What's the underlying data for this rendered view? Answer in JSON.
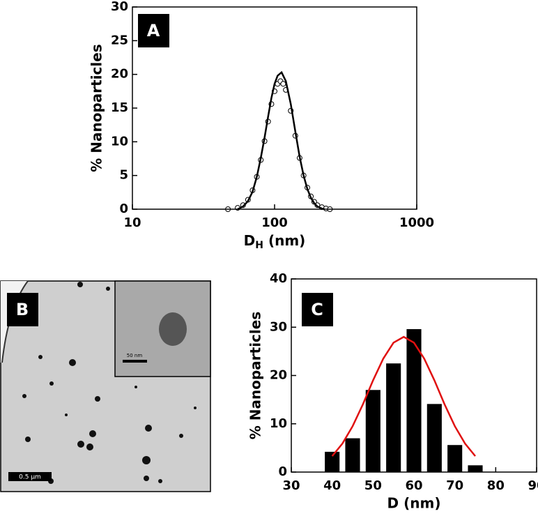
{
  "chart_data": [
    {
      "type": "line",
      "label": "A",
      "ylabel": "% Nanoparticles",
      "xlabel": [
        "D",
        "H",
        " (nm)"
      ],
      "xlog": true,
      "xlim": [
        10,
        1000
      ],
      "xticks": [
        10,
        100,
        1000
      ],
      "ylim": [
        0,
        30
      ],
      "yticks": [
        0,
        5,
        10,
        15,
        20,
        25,
        30
      ],
      "series": [
        {
          "color": "#000000",
          "marker": "circle",
          "x": [
            47,
            55,
            60,
            65,
            70,
            75,
            80,
            85,
            90,
            95,
            100,
            105,
            110,
            115,
            120,
            130,
            140,
            150,
            160,
            170,
            180,
            190,
            200,
            215,
            230,
            245
          ],
          "values": [
            0,
            0.2,
            0.6,
            1.4,
            2.8,
            4.8,
            7.3,
            10.1,
            13.0,
            15.6,
            17.5,
            18.6,
            19.0,
            18.6,
            17.7,
            14.6,
            10.9,
            7.6,
            5.0,
            3.2,
            1.9,
            1.1,
            0.6,
            0.3,
            0.1,
            0
          ]
        },
        {
          "color": "#000000",
          "marker": "none",
          "x": [
            55,
            60,
            65,
            70,
            75,
            80,
            85,
            90,
            95,
            100,
            105,
            112,
            120,
            130,
            140,
            150,
            160,
            170,
            180,
            190,
            200,
            215,
            225
          ],
          "values": [
            0,
            0.4,
            1.2,
            2.6,
            4.8,
            7.6,
            10.6,
            13.7,
            16.5,
            18.6,
            19.8,
            20.3,
            19.0,
            15.6,
            11.5,
            7.8,
            5.0,
            3.0,
            1.7,
            0.9,
            0.4,
            0.1,
            0
          ]
        }
      ]
    },
    {
      "type": "bar",
      "label": "C",
      "ylabel": "% Nanoparticles",
      "xlabel": "D (nm)",
      "xlim": [
        30,
        90
      ],
      "xticks": [
        30,
        40,
        50,
        60,
        70,
        80,
        90
      ],
      "ylim": [
        0,
        40
      ],
      "yticks": [
        0,
        10,
        20,
        30,
        40
      ],
      "series": [
        {
          "type": "bar",
          "color": "#000000",
          "x": [
            40,
            45,
            50,
            55,
            60,
            65,
            70,
            75
          ],
          "values": [
            4.2,
            7.0,
            17.0,
            22.5,
            29.6,
            14.1,
            5.6,
            1.4
          ]
        },
        {
          "type": "line",
          "color": "#e01010",
          "x": [
            40,
            42.5,
            45,
            47.5,
            50,
            52.5,
            55,
            57.5,
            60,
            62.5,
            65,
            67.5,
            70,
            72.5,
            75
          ],
          "values": [
            3.3,
            5.9,
            9.5,
            14.0,
            19.0,
            23.5,
            26.8,
            28,
            26.8,
            23.5,
            19.0,
            14.0,
            9.5,
            5.9,
            3.3
          ]
        }
      ]
    }
  ],
  "image_panel": {
    "label": "B",
    "scale_bar": "0.5 μm",
    "inset_scale_bar": "50 nm"
  }
}
